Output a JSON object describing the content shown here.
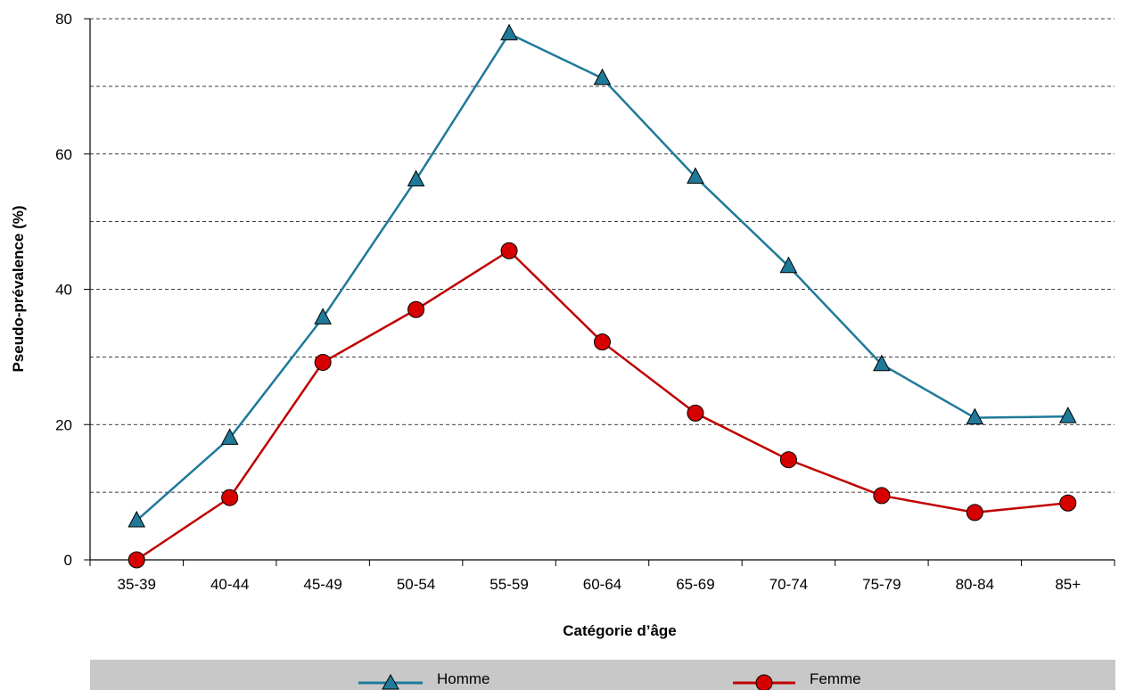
{
  "chart_data": {
    "type": "line",
    "title": "",
    "xlabel": "Catégorie d’âge",
    "ylabel": "Pseudo-prévalence (%)",
    "categories": [
      "35-39",
      "40-44",
      "45-49",
      "50-54",
      "55-59",
      "60-64",
      "65-69",
      "70-74",
      "75-79",
      "80-84",
      "85+"
    ],
    "ylim": [
      0,
      80
    ],
    "yticks": [
      "0",
      "20",
      "40",
      "60",
      "80"
    ],
    "grid": "dashed horizontal every 10",
    "legend_position": "bottom",
    "series": [
      {
        "name": "Homme",
        "marker": "triangle",
        "color": "#1f7a99",
        "marker_fill": "#1f7a99",
        "values": [
          5.8,
          18.0,
          35.8,
          56.2,
          77.8,
          71.2,
          56.6,
          43.4,
          28.9,
          21.0,
          21.2
        ]
      },
      {
        "name": "Femme",
        "marker": "circle",
        "color": "#c00000",
        "marker_fill": "#d60000",
        "values": [
          0.0,
          9.2,
          29.2,
          37.0,
          45.7,
          32.2,
          21.7,
          14.8,
          9.5,
          7.0,
          8.4
        ]
      }
    ]
  }
}
